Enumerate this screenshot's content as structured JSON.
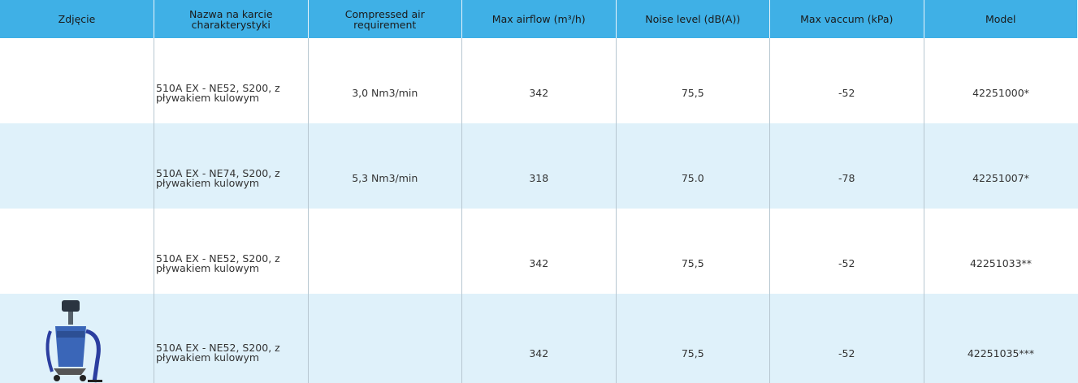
{
  "table": {
    "headers": [
      "Zdjęcie",
      "Nazwa na karcie charakterystyki",
      "Compressed air requirement",
      "Max airflow (m³/h)",
      "Noise level (dB(A))",
      "Max vaccum (kPa)",
      "Model"
    ],
    "rows": [
      {
        "name": "510A EX - NE52, S200, z pływakiem kulowym",
        "air": "3,0 Nm3/min",
        "airflow": "342",
        "noise": "75,5",
        "vacuum": "-52",
        "model": "42251000*"
      },
      {
        "name": "510A EX - NE74, S200, z pływakiem kulowym",
        "air": "5,3 Nm3/min",
        "airflow": "318",
        "noise": "75.0",
        "vacuum": "-78",
        "model": "42251007*"
      },
      {
        "name": "510A EX - NE52, S200, z pływakiem kulowym",
        "airflow": "342",
        "noise": "75,5",
        "vacuum": "-52",
        "model": "42251033**"
      },
      {
        "name": "510A EX - NE52, S200, z pływakiem kulowym",
        "airflow": "342",
        "noise": "75,5",
        "vacuum": "-52",
        "model": "42251035***",
        "photo": true
      }
    ]
  }
}
